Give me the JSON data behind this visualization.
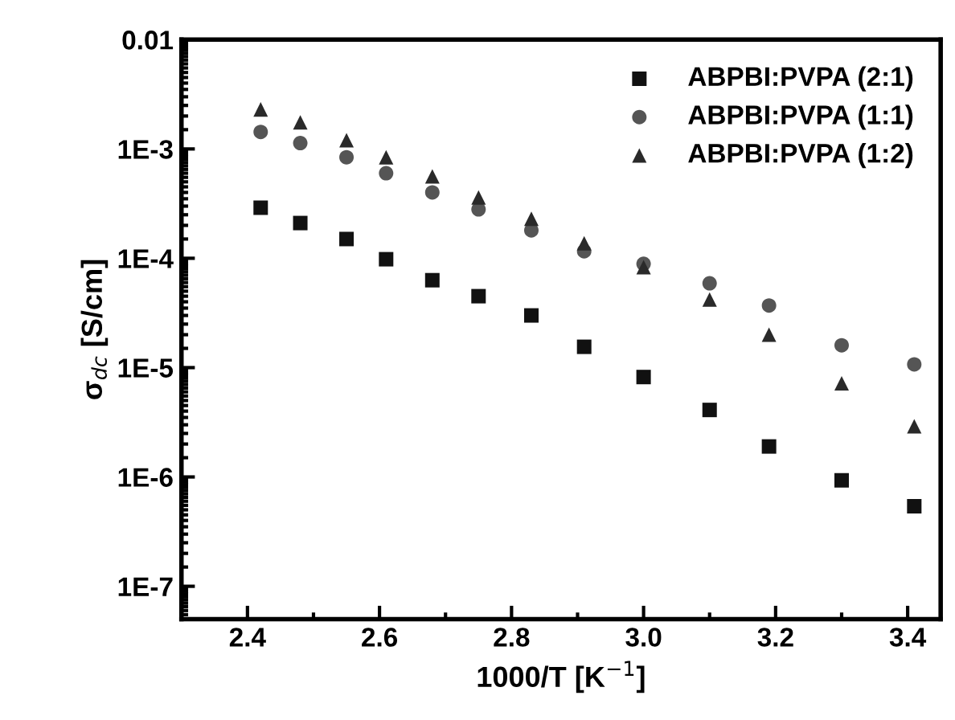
{
  "chart_data": {
    "type": "scatter",
    "xlabel": "1000/T [K$^{−1}$]",
    "ylabel": "σ$_{dc}$ [S/cm]",
    "log": "y",
    "grid": false,
    "legend": "top right",
    "xlim": [
      2.3,
      3.45
    ],
    "ylim": [
      5e-08,
      0.01
    ],
    "xticks": [
      {
        "value": 2.4,
        "label": "2.4"
      },
      {
        "value": 2.6,
        "label": "2.6"
      },
      {
        "value": 2.8,
        "label": "2.8"
      },
      {
        "value": 3.0,
        "label": "3.0"
      },
      {
        "value": 3.2,
        "label": "3.2"
      },
      {
        "value": 3.4,
        "label": "3.4"
      }
    ],
    "yticks": [
      {
        "value": 1e-07,
        "label": "1E-7"
      },
      {
        "value": 1e-06,
        "label": "1E-6"
      },
      {
        "value": 1e-05,
        "label": "1E-5"
      },
      {
        "value": 0.0001,
        "label": "1E-4"
      },
      {
        "value": 0.001,
        "label": "1E-3"
      },
      {
        "value": 0.01,
        "label": "0.01"
      }
    ],
    "x": [
      2.42,
      2.48,
      2.55,
      2.61,
      2.68,
      2.75,
      2.83,
      2.91,
      3.0,
      3.1,
      3.19,
      3.3,
      3.41
    ],
    "series": [
      {
        "name": "ABPBI:PVPA (2:1)",
        "color": "#111111",
        "marker": "square",
        "values": [
          0.00029,
          0.00021,
          0.00015,
          9.8e-05,
          6.3e-05,
          4.5e-05,
          3e-05,
          1.55e-05,
          8.2e-06,
          4.1e-06,
          1.9e-06,
          9.3e-07,
          5.4e-07
        ]
      },
      {
        "name": "ABPBI:PVPA (1:1)",
        "color": "#555555",
        "marker": "circle",
        "values": [
          0.00143,
          0.00113,
          0.00084,
          0.0006,
          0.0004,
          0.00028,
          0.00018,
          0.000116,
          8.9e-05,
          5.9e-05,
          3.7e-05,
          1.6e-05,
          1.07e-05
        ]
      },
      {
        "name": "ABPBI:PVPA (1:2)",
        "color": "#2a2a2a",
        "marker": "triangle",
        "values": [
          0.0023,
          0.00175,
          0.0012,
          0.00084,
          0.00056,
          0.00036,
          0.00023,
          0.000137,
          8.3e-05,
          4.2e-05,
          2e-05,
          7.2e-06,
          2.9e-06
        ]
      }
    ]
  }
}
